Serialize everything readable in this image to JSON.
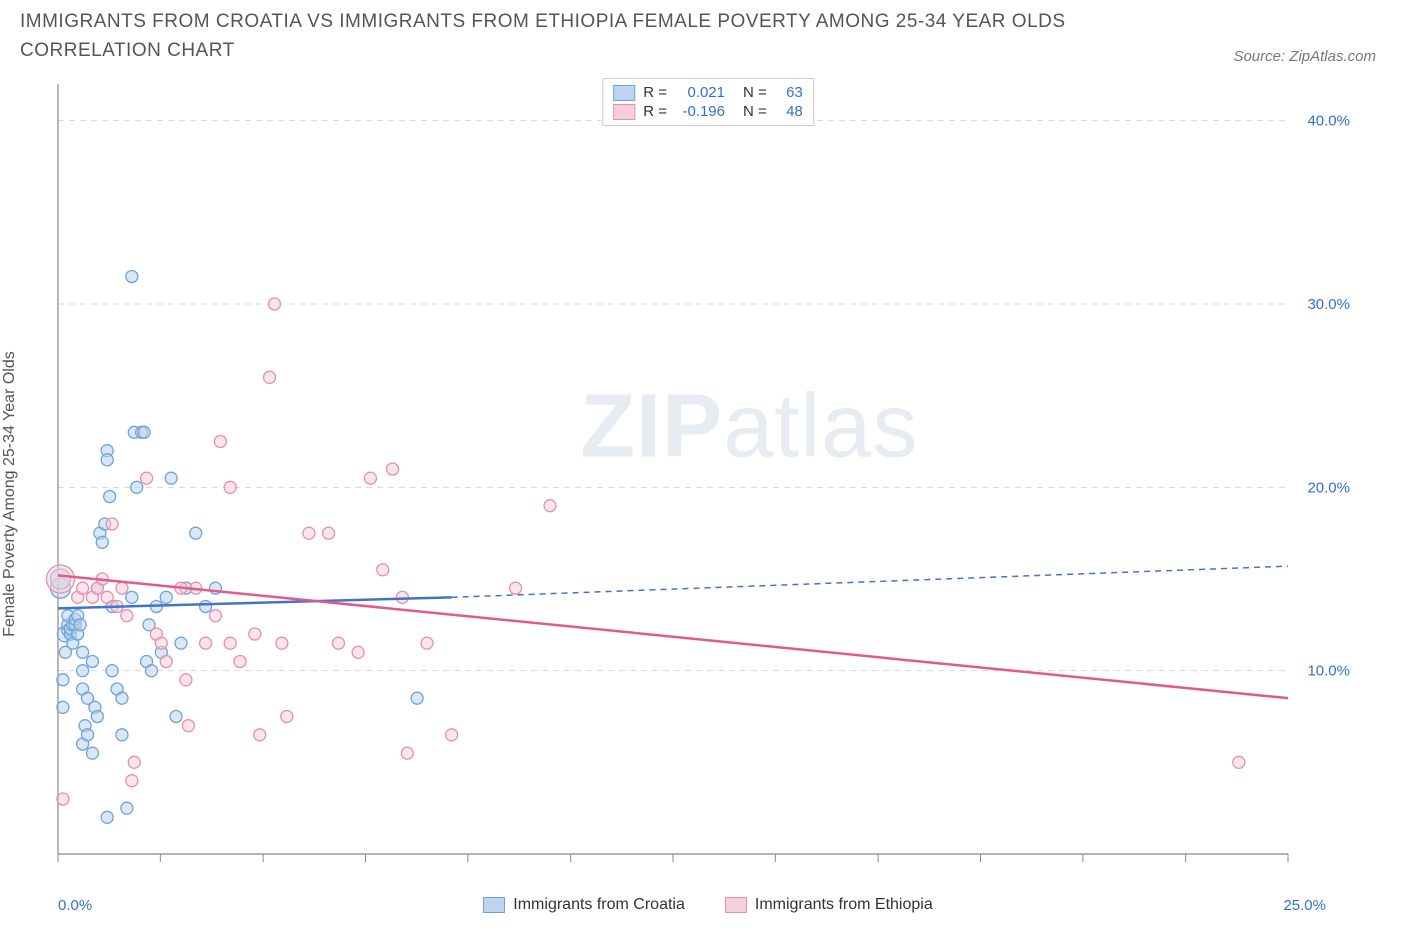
{
  "title": "IMMIGRANTS FROM CROATIA VS IMMIGRANTS FROM ETHIOPIA FEMALE POVERTY AMONG 25-34 YEAR OLDS CORRELATION CHART",
  "source": "Source: ZipAtlas.com",
  "ylabel": "Female Poverty Among 25-34 Year Olds",
  "watermark_bold": "ZIP",
  "watermark_light": "atlas",
  "chart": {
    "type": "scatter",
    "xlim": [
      0,
      25
    ],
    "ylim": [
      0,
      42
    ],
    "x_axis_label_min": "0.0%",
    "x_axis_label_max": "25.0%",
    "y_ticks": [
      {
        "v": 10,
        "label": "10.0%"
      },
      {
        "v": 20,
        "label": "20.0%"
      },
      {
        "v": 30,
        "label": "30.0%"
      },
      {
        "v": 40,
        "label": "40.0%"
      }
    ],
    "x_ticks_minor": [
      0,
      2.08,
      4.17,
      6.25,
      8.33,
      10.42,
      12.5,
      14.58,
      16.67,
      18.75,
      20.83,
      22.92,
      25
    ],
    "grid_color": "#d8d8d8",
    "axis_color": "#888888",
    "tick_label_color": "#3171c8",
    "background_color": "#ffffff",
    "series": [
      {
        "name": "Immigrants from Croatia",
        "color_fill": "#bcd4ee",
        "color_stroke": "#6fa3d8",
        "trend_color": "#3f74c9",
        "R": "0.021",
        "N": "63",
        "trend": {
          "x1": 0,
          "y1": 13.4,
          "x2_solid": 8,
          "y2_solid": 14.0,
          "x2": 25,
          "y2": 15.7
        },
        "points": [
          {
            "x": 0.05,
            "y": 14.5,
            "r": 10
          },
          {
            "x": 0.05,
            "y": 15.0,
            "r": 10
          },
          {
            "x": 0.1,
            "y": 8.0,
            "r": 6
          },
          {
            "x": 0.1,
            "y": 9.5,
            "r": 6
          },
          {
            "x": 0.15,
            "y": 11.0,
            "r": 6
          },
          {
            "x": 0.15,
            "y": 12.0,
            "r": 8
          },
          {
            "x": 0.2,
            "y": 12.2,
            "r": 6
          },
          {
            "x": 0.2,
            "y": 12.5,
            "r": 6
          },
          {
            "x": 0.2,
            "y": 13.0,
            "r": 6
          },
          {
            "x": 0.25,
            "y": 12.0,
            "r": 6
          },
          {
            "x": 0.25,
            "y": 12.3,
            "r": 6
          },
          {
            "x": 0.3,
            "y": 11.5,
            "r": 6
          },
          {
            "x": 0.3,
            "y": 12.5,
            "r": 6
          },
          {
            "x": 0.35,
            "y": 12.5,
            "r": 6
          },
          {
            "x": 0.35,
            "y": 12.8,
            "r": 6
          },
          {
            "x": 0.4,
            "y": 12.0,
            "r": 6
          },
          {
            "x": 0.4,
            "y": 13.0,
            "r": 6
          },
          {
            "x": 0.45,
            "y": 12.5,
            "r": 6
          },
          {
            "x": 0.5,
            "y": 9.0,
            "r": 6
          },
          {
            "x": 0.5,
            "y": 10.0,
            "r": 6
          },
          {
            "x": 0.5,
            "y": 11.0,
            "r": 6
          },
          {
            "x": 0.5,
            "y": 6.0,
            "r": 6
          },
          {
            "x": 0.55,
            "y": 7.0,
            "r": 6
          },
          {
            "x": 0.6,
            "y": 8.5,
            "r": 6
          },
          {
            "x": 0.6,
            "y": 6.5,
            "r": 6
          },
          {
            "x": 0.7,
            "y": 5.5,
            "r": 6
          },
          {
            "x": 0.7,
            "y": 10.5,
            "r": 6
          },
          {
            "x": 0.75,
            "y": 8.0,
            "r": 6
          },
          {
            "x": 0.8,
            "y": 7.5,
            "r": 6
          },
          {
            "x": 0.8,
            "y": 14.5,
            "r": 6
          },
          {
            "x": 0.85,
            "y": 17.5,
            "r": 6
          },
          {
            "x": 0.9,
            "y": 17.0,
            "r": 6
          },
          {
            "x": 0.95,
            "y": 18.0,
            "r": 6
          },
          {
            "x": 1.0,
            "y": 22.0,
            "r": 6
          },
          {
            "x": 1.0,
            "y": 21.5,
            "r": 6
          },
          {
            "x": 1.0,
            "y": 2.0,
            "r": 6
          },
          {
            "x": 1.05,
            "y": 19.5,
            "r": 6
          },
          {
            "x": 1.1,
            "y": 13.5,
            "r": 6
          },
          {
            "x": 1.1,
            "y": 10.0,
            "r": 6
          },
          {
            "x": 1.2,
            "y": 9.0,
            "r": 6
          },
          {
            "x": 1.3,
            "y": 8.5,
            "r": 6
          },
          {
            "x": 1.3,
            "y": 6.5,
            "r": 6
          },
          {
            "x": 1.4,
            "y": 2.5,
            "r": 6
          },
          {
            "x": 1.5,
            "y": 31.5,
            "r": 6
          },
          {
            "x": 1.5,
            "y": 14.0,
            "r": 6
          },
          {
            "x": 1.55,
            "y": 23.0,
            "r": 6
          },
          {
            "x": 1.6,
            "y": 20.0,
            "r": 6
          },
          {
            "x": 1.7,
            "y": 23.0,
            "r": 6
          },
          {
            "x": 1.75,
            "y": 23.0,
            "r": 6
          },
          {
            "x": 1.8,
            "y": 10.5,
            "r": 6
          },
          {
            "x": 1.85,
            "y": 12.5,
            "r": 6
          },
          {
            "x": 1.9,
            "y": 10.0,
            "r": 6
          },
          {
            "x": 2.0,
            "y": 13.5,
            "r": 6
          },
          {
            "x": 2.1,
            "y": 11.0,
            "r": 6
          },
          {
            "x": 2.2,
            "y": 14.0,
            "r": 6
          },
          {
            "x": 2.3,
            "y": 20.5,
            "r": 6
          },
          {
            "x": 2.4,
            "y": 7.5,
            "r": 6
          },
          {
            "x": 2.5,
            "y": 11.5,
            "r": 6
          },
          {
            "x": 2.6,
            "y": 14.5,
            "r": 6
          },
          {
            "x": 2.8,
            "y": 17.5,
            "r": 6
          },
          {
            "x": 3.0,
            "y": 13.5,
            "r": 6
          },
          {
            "x": 3.2,
            "y": 14.5,
            "r": 6
          },
          {
            "x": 7.3,
            "y": 8.5,
            "r": 6
          }
        ]
      },
      {
        "name": "Immigrants from Ethiopia",
        "color_fill": "#f6cfda",
        "color_stroke": "#e68fac",
        "trend_color": "#e35a8a",
        "R": "-0.196",
        "N": "48",
        "trend": {
          "x1": 0,
          "y1": 15.2,
          "x2_solid": 25,
          "y2_solid": 8.5,
          "x2": 25,
          "y2": 8.5
        },
        "points": [
          {
            "x": 0.05,
            "y": 15.0,
            "r": 14
          },
          {
            "x": 0.1,
            "y": 3.0,
            "r": 6
          },
          {
            "x": 0.4,
            "y": 14.0,
            "r": 6
          },
          {
            "x": 0.5,
            "y": 14.5,
            "r": 6
          },
          {
            "x": 0.7,
            "y": 14.0,
            "r": 6
          },
          {
            "x": 0.8,
            "y": 14.5,
            "r": 6
          },
          {
            "x": 0.9,
            "y": 15.0,
            "r": 6
          },
          {
            "x": 1.0,
            "y": 14.0,
            "r": 6
          },
          {
            "x": 1.1,
            "y": 18.0,
            "r": 6
          },
          {
            "x": 1.2,
            "y": 13.5,
            "r": 6
          },
          {
            "x": 1.3,
            "y": 14.5,
            "r": 6
          },
          {
            "x": 1.4,
            "y": 13.0,
            "r": 6
          },
          {
            "x": 1.5,
            "y": 4.0,
            "r": 6
          },
          {
            "x": 1.55,
            "y": 5.0,
            "r": 6
          },
          {
            "x": 1.8,
            "y": 20.5,
            "r": 6
          },
          {
            "x": 2.0,
            "y": 12.0,
            "r": 6
          },
          {
            "x": 2.1,
            "y": 11.5,
            "r": 6
          },
          {
            "x": 2.2,
            "y": 10.5,
            "r": 6
          },
          {
            "x": 2.5,
            "y": 14.5,
            "r": 6
          },
          {
            "x": 2.6,
            "y": 9.5,
            "r": 6
          },
          {
            "x": 2.65,
            "y": 7.0,
            "r": 6
          },
          {
            "x": 2.8,
            "y": 14.5,
            "r": 6
          },
          {
            "x": 3.0,
            "y": 11.5,
            "r": 6
          },
          {
            "x": 3.2,
            "y": 13.0,
            "r": 6
          },
          {
            "x": 3.3,
            "y": 22.5,
            "r": 6
          },
          {
            "x": 3.5,
            "y": 11.5,
            "r": 6
          },
          {
            "x": 3.5,
            "y": 20.0,
            "r": 6
          },
          {
            "x": 3.7,
            "y": 10.5,
            "r": 6
          },
          {
            "x": 4.0,
            "y": 12.0,
            "r": 6
          },
          {
            "x": 4.1,
            "y": 6.5,
            "r": 6
          },
          {
            "x": 4.3,
            "y": 26.0,
            "r": 6
          },
          {
            "x": 4.4,
            "y": 30.0,
            "r": 6
          },
          {
            "x": 4.55,
            "y": 11.5,
            "r": 6
          },
          {
            "x": 4.65,
            "y": 7.5,
            "r": 6
          },
          {
            "x": 5.1,
            "y": 17.5,
            "r": 6
          },
          {
            "x": 5.5,
            "y": 17.5,
            "r": 6
          },
          {
            "x": 5.7,
            "y": 11.5,
            "r": 6
          },
          {
            "x": 6.1,
            "y": 11.0,
            "r": 6
          },
          {
            "x": 6.35,
            "y": 20.5,
            "r": 6
          },
          {
            "x": 6.6,
            "y": 15.5,
            "r": 6
          },
          {
            "x": 6.8,
            "y": 21.0,
            "r": 6
          },
          {
            "x": 7.0,
            "y": 14.0,
            "r": 6
          },
          {
            "x": 7.1,
            "y": 5.5,
            "r": 6
          },
          {
            "x": 7.5,
            "y": 11.5,
            "r": 6
          },
          {
            "x": 8.0,
            "y": 6.5,
            "r": 6
          },
          {
            "x": 9.3,
            "y": 14.5,
            "r": 6
          },
          {
            "x": 10.0,
            "y": 19.0,
            "r": 6
          },
          {
            "x": 24.0,
            "y": 5.0,
            "r": 6
          }
        ]
      }
    ]
  }
}
